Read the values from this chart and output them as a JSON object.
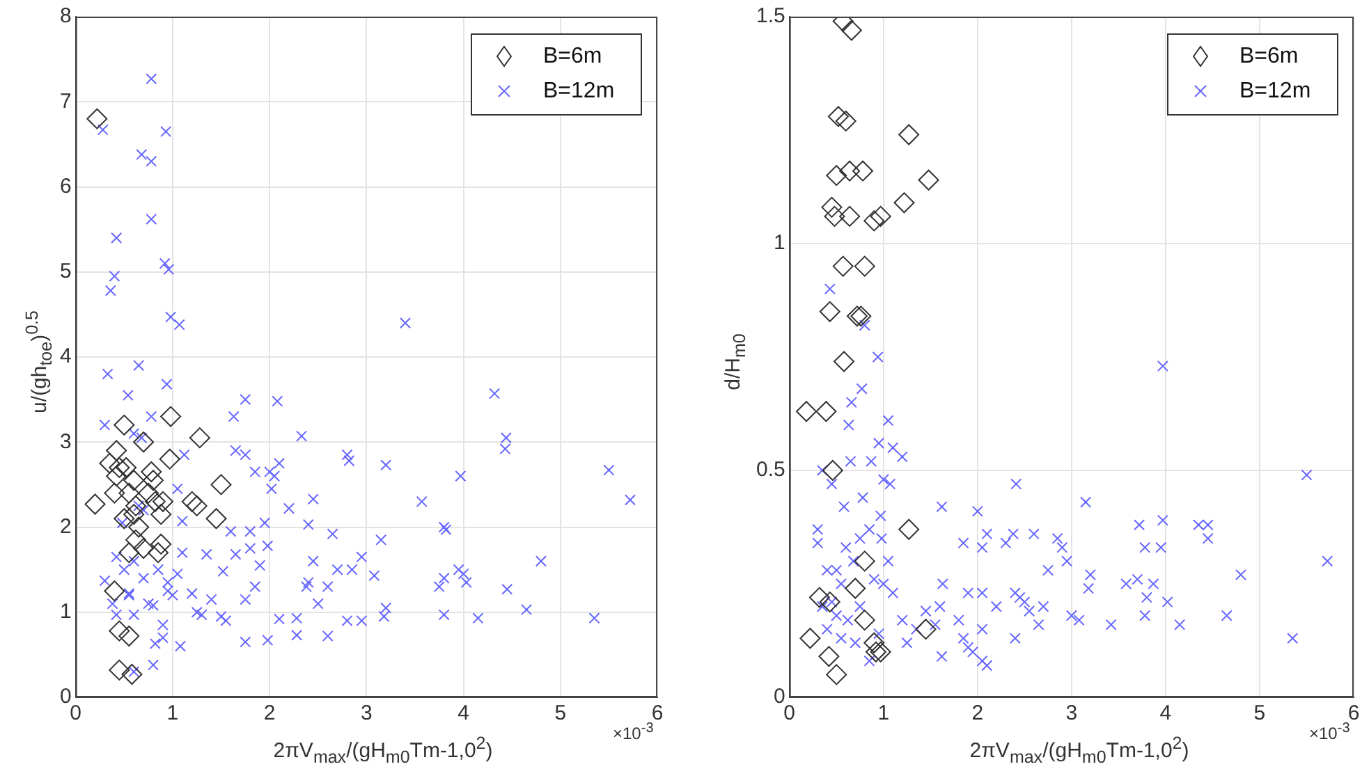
{
  "chart_data": [
    {
      "type": "scatter",
      "xlabel": "2πV$_{max}$/(gH$_{m0}$Tm-1,0$^{2}$)",
      "ylabel": "u/(gh$_{toe}$)$^{0.5}$",
      "annotations": [
        "×10$^{-3}$"
      ],
      "xlim": [
        0,
        6
      ],
      "xticks": [
        0,
        1,
        2,
        3,
        4,
        5,
        6
      ],
      "ylim": [
        0,
        8
      ],
      "yticks": [
        0,
        1,
        2,
        3,
        4,
        5,
        6,
        7,
        8
      ],
      "grid": true,
      "legend": "top right",
      "series": [
        {
          "name": "B=6m",
          "color": "#333333",
          "marker": "diamond",
          "x": [
            0.22,
            0.2,
            0.35,
            0.42,
            0.4,
            0.42,
            0.5,
            0.52,
            0.5,
            0.55,
            0.6,
            0.62,
            0.65,
            0.62,
            0.55,
            0.7,
            0.7,
            0.75,
            0.78,
            0.8,
            0.82,
            0.85,
            0.88,
            0.9,
            0.88,
            0.97,
            0.98,
            1.2,
            1.25,
            1.28,
            1.45,
            1.5,
            0.4,
            0.45,
            0.55,
            0.45,
            0.58,
            0.6,
            0.45
          ],
          "values": [
            6.8,
            2.27,
            2.75,
            2.6,
            2.4,
            2.9,
            3.2,
            2.7,
            2.1,
            2.4,
            2.55,
            2.25,
            2.0,
            1.85,
            1.7,
            1.75,
            3.0,
            2.4,
            2.65,
            2.55,
            2.3,
            1.7,
            1.8,
            2.3,
            2.15,
            2.8,
            3.3,
            2.3,
            2.25,
            3.05,
            2.1,
            2.5,
            1.25,
            0.78,
            0.72,
            0.32,
            0.27,
            2.15,
            2.7
          ]
        },
        {
          "name": "B=12m",
          "color": "#6666ff",
          "marker": "cross",
          "x": [
            0.28,
            0.78,
            0.93,
            0.68,
            0.78,
            0.78,
            0.42,
            0.4,
            0.36,
            0.92,
            0.96,
            0.98,
            1.07,
            0.33,
            0.65,
            0.94,
            0.54,
            3.4,
            0.3,
            0.78,
            0.6,
            0.68,
            1.12,
            1.05,
            1.63,
            1.75,
            2.08,
            1.65,
            1.75,
            1.85,
            2.0,
            2.05,
            2.1,
            2.02,
            2.33,
            2.8,
            2.82,
            3.2,
            1.95,
            2.2,
            2.45,
            2.4,
            2.65,
            3.57,
            3.8,
            3.82,
            3.97,
            4.32,
            4.44,
            4.43,
            5.5,
            5.72,
            4.8,
            4.45,
            4.65,
            5.35,
            4.15,
            3.8,
            4.0,
            4.03,
            3.75,
            3.8,
            3.95,
            3.15,
            3.08,
            2.95,
            2.85,
            2.7,
            2.6,
            2.45,
            2.4,
            2.38,
            2.5,
            2.28,
            2.28,
            2.6,
            2.8,
            2.95,
            3.2,
            3.18,
            1.98,
            1.9,
            1.8,
            1.8,
            1.85,
            1.75,
            1.75,
            1.98,
            2.1,
            1.65,
            1.6,
            1.52,
            1.5,
            1.55,
            1.35,
            1.4,
            1.3,
            1.25,
            1.2,
            1.1,
            1.1,
            1.05,
            1.08,
            1.0,
            0.95,
            0.9,
            0.9,
            0.82,
            0.8,
            0.75,
            0.85,
            0.7,
            0.6,
            0.55,
            0.5,
            0.42,
            0.38,
            0.42,
            0.3,
            0.48,
            0.6,
            0.65,
            0.7,
            0.55,
            0.6,
            0.8,
            0.95
          ],
          "values": [
            6.67,
            7.27,
            6.65,
            6.38,
            6.3,
            5.62,
            5.4,
            4.95,
            4.78,
            5.1,
            5.03,
            4.47,
            4.38,
            3.8,
            3.9,
            3.68,
            3.55,
            4.4,
            3.2,
            3.3,
            3.1,
            3.05,
            2.85,
            2.45,
            3.3,
            3.5,
            3.48,
            2.9,
            2.85,
            2.65,
            2.65,
            2.6,
            2.75,
            2.45,
            3.07,
            2.85,
            2.78,
            2.73,
            2.05,
            2.22,
            2.33,
            2.03,
            1.92,
            2.3,
            2.0,
            1.97,
            2.6,
            3.57,
            3.05,
            2.92,
            2.67,
            2.32,
            1.6,
            1.27,
            1.03,
            0.93,
            0.93,
            0.97,
            1.45,
            1.35,
            1.3,
            1.4,
            1.5,
            1.85,
            1.43,
            1.65,
            1.5,
            1.5,
            1.3,
            1.6,
            1.35,
            1.3,
            1.1,
            0.93,
            0.73,
            0.72,
            0.9,
            0.9,
            1.05,
            0.95,
            1.78,
            1.55,
            1.75,
            1.95,
            1.3,
            1.15,
            0.65,
            0.67,
            0.92,
            1.68,
            1.95,
            1.48,
            0.95,
            0.9,
            1.68,
            1.15,
            0.97,
            1.0,
            1.22,
            2.07,
            1.7,
            1.45,
            0.6,
            1.2,
            1.25,
            0.85,
            0.7,
            0.63,
            0.38,
            1.1,
            1.5,
            1.4,
            0.97,
            1.2,
            1.5,
            1.65,
            1.1,
            0.97,
            1.37,
            2.05,
            1.6,
            2.25,
            2.2,
            1.22,
            0.3,
            1.08,
            1.35
          ]
        }
      ]
    },
    {
      "type": "scatter",
      "xlabel": "2πV$_{max}$/(gH$_{m0}$Tm-1,0$^{2}$)",
      "ylabel": "d/H$_{m0}$",
      "annotations": [
        "×10$^{-3}$"
      ],
      "xlim": [
        0,
        6
      ],
      "xticks": [
        0,
        1,
        2,
        3,
        4,
        5,
        6
      ],
      "ylim": [
        0,
        1.5
      ],
      "yticks": [
        0,
        0.5,
        1,
        1.5
      ],
      "grid": true,
      "legend": "top right",
      "series": [
        {
          "name": "B=6m",
          "color": "#333333",
          "marker": "diamond",
          "x": [
            0.57,
            0.66,
            0.52,
            0.6,
            1.27,
            0.5,
            0.64,
            0.78,
            1.48,
            0.45,
            0.48,
            0.64,
            0.9,
            0.97,
            1.22,
            0.57,
            0.8,
            0.43,
            0.72,
            0.76,
            0.58,
            0.18,
            0.39,
            0.46,
            1.27,
            0.8,
            0.7,
            0.32,
            0.43,
            0.8,
            0.22,
            0.9,
            0.97,
            0.92,
            0.42,
            0.5,
            1.45
          ],
          "values": [
            1.49,
            1.47,
            1.28,
            1.27,
            1.24,
            1.15,
            1.16,
            1.16,
            1.14,
            1.08,
            1.06,
            1.06,
            1.05,
            1.06,
            1.09,
            0.95,
            0.95,
            0.85,
            0.84,
            0.84,
            0.74,
            0.63,
            0.63,
            0.5,
            0.37,
            0.3,
            0.24,
            0.22,
            0.21,
            0.17,
            0.13,
            0.12,
            0.1,
            0.1,
            0.09,
            0.05,
            0.15
          ]
        },
        {
          "name": "B=12m",
          "color": "#6666ff",
          "marker": "cross",
          "x": [
            0.43,
            0.8,
            0.94,
            0.77,
            0.66,
            0.63,
            1.05,
            0.95,
            1.1,
            1.2,
            0.87,
            0.65,
            0.35,
            0.45,
            1.0,
            1.07,
            0.78,
            0.58,
            0.97,
            0.3,
            1.62,
            2.0,
            2.41,
            3.15,
            2.1,
            2.38,
            2.6,
            1.85,
            2.05,
            2.3,
            2.85,
            2.9,
            3.72,
            3.97,
            4.35,
            4.45,
            3.95,
            3.78,
            4.45,
            3.97,
            5.5,
            5.72,
            4.8,
            4.65,
            4.15,
            3.42,
            3.78,
            3.8,
            3.87,
            4.02,
            3.58,
            3.7,
            3.2,
            3.18,
            3.0,
            3.08,
            5.35,
            2.95,
            2.75,
            2.7,
            2.5,
            2.4,
            2.45,
            2.4,
            2.55,
            2.65,
            2.2,
            2.05,
            2.05,
            2.1,
            2.05,
            1.9,
            1.8,
            1.85,
            1.9,
            1.95,
            1.6,
            1.63,
            1.55,
            1.62,
            1.35,
            1.25,
            1.2,
            1.45,
            1.1,
            1.05,
            1.0,
            0.98,
            0.9,
            0.85,
            0.75,
            0.68,
            0.6,
            0.55,
            0.5,
            0.45,
            0.35,
            0.4,
            0.5,
            0.55,
            0.62,
            0.7,
            0.75,
            0.85,
            0.95,
            0.3,
            0.4
          ],
          "values": [
            0.9,
            0.82,
            0.75,
            0.68,
            0.65,
            0.6,
            0.61,
            0.56,
            0.55,
            0.53,
            0.52,
            0.52,
            0.5,
            0.47,
            0.48,
            0.47,
            0.44,
            0.42,
            0.4,
            0.37,
            0.42,
            0.41,
            0.47,
            0.43,
            0.36,
            0.36,
            0.36,
            0.34,
            0.33,
            0.34,
            0.35,
            0.33,
            0.38,
            0.39,
            0.38,
            0.38,
            0.33,
            0.33,
            0.35,
            0.73,
            0.49,
            0.3,
            0.27,
            0.18,
            0.16,
            0.16,
            0.18,
            0.22,
            0.25,
            0.21,
            0.25,
            0.26,
            0.27,
            0.24,
            0.18,
            0.17,
            0.13,
            0.3,
            0.28,
            0.2,
            0.21,
            0.23,
            0.22,
            0.13,
            0.19,
            0.16,
            0.2,
            0.23,
            0.08,
            0.07,
            0.15,
            0.23,
            0.17,
            0.13,
            0.11,
            0.1,
            0.2,
            0.25,
            0.16,
            0.09,
            0.15,
            0.12,
            0.17,
            0.19,
            0.23,
            0.3,
            0.25,
            0.35,
            0.26,
            0.37,
            0.35,
            0.3,
            0.33,
            0.25,
            0.28,
            0.21,
            0.2,
            0.15,
            0.18,
            0.13,
            0.17,
            0.12,
            0.2,
            0.08,
            0.14,
            0.34,
            0.28
          ]
        }
      ]
    }
  ]
}
